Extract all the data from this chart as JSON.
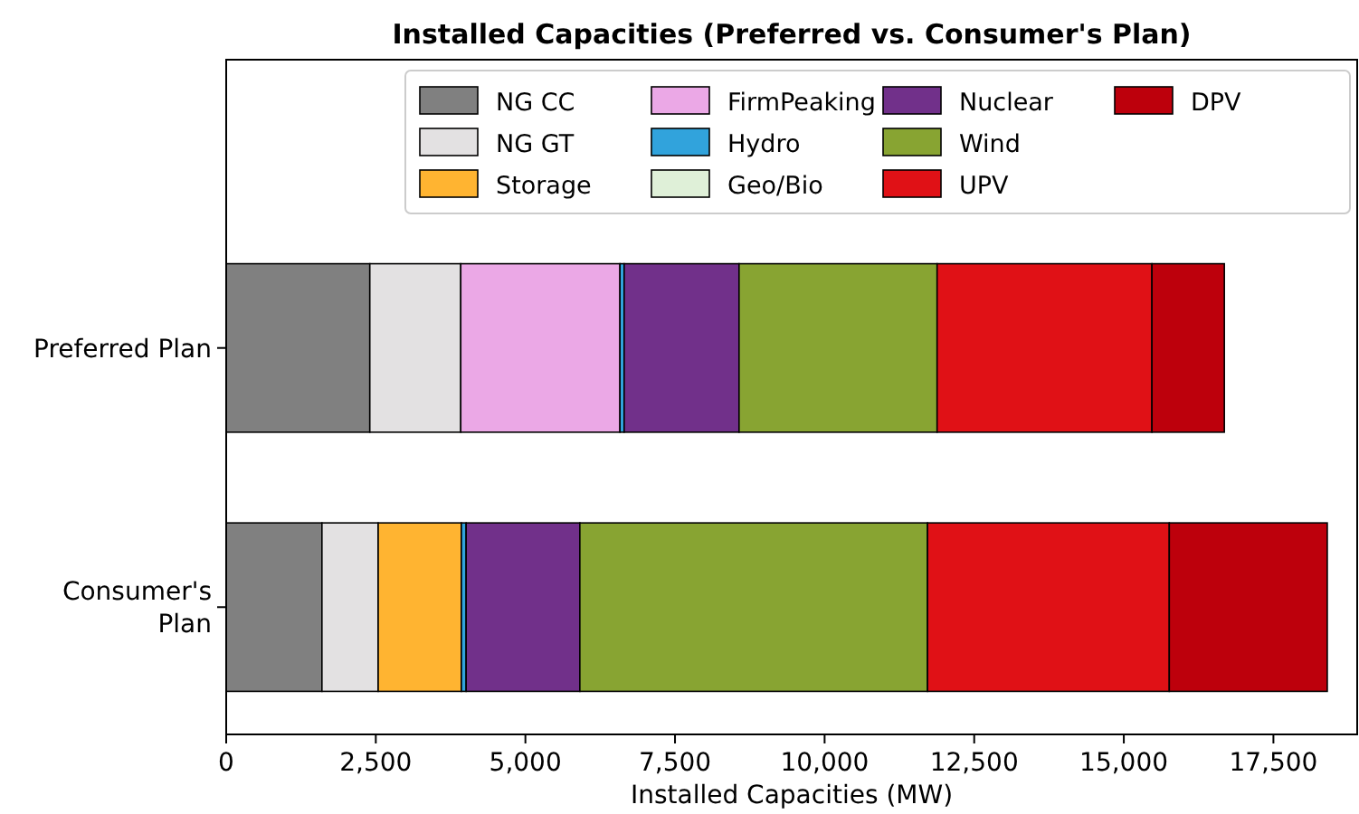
{
  "chart_data": {
    "type": "bar",
    "orientation": "horizontal",
    "stacked": true,
    "title": "Installed Capacities (Preferred vs. Consumer's Plan)",
    "xlabel": "Installed Capacities (MW)",
    "categories": [
      "Preferred Plan",
      "Consumer's Plan"
    ],
    "series": [
      {
        "name": "NG CC",
        "color": "#808080",
        "values": [
          2400,
          1600
        ]
      },
      {
        "name": "NG GT",
        "color": "#e3e1e2",
        "values": [
          1520,
          940
        ]
      },
      {
        "name": "Storage",
        "color": "#ffb431",
        "values": [
          0,
          1390
        ]
      },
      {
        "name": "FirmPeaking",
        "color": "#eba8e6",
        "values": [
          2660,
          0
        ]
      },
      {
        "name": "Hydro",
        "color": "#31a3dc",
        "values": [
          70,
          80
        ]
      },
      {
        "name": "Geo/Bio",
        "color": "#dff0d8",
        "values": [
          0,
          0
        ]
      },
      {
        "name": "Nuclear",
        "color": "#71308a",
        "values": [
          1920,
          1900
        ]
      },
      {
        "name": "Wind",
        "color": "#88a432",
        "values": [
          3310,
          5810
        ]
      },
      {
        "name": "UPV",
        "color": "#e01116",
        "values": [
          3590,
          4040
        ]
      },
      {
        "name": "DPV",
        "color": "#bd000c",
        "values": [
          1210,
          2640
        ]
      }
    ],
    "xlim": [
      0,
      18900
    ],
    "xticks": [
      0,
      {
        "value": 2500,
        "label": "2,500"
      },
      {
        "value": 5000,
        "label": "5,000"
      },
      {
        "value": 7500,
        "label": "7,500"
      },
      {
        "value": 10000,
        "label": "10,000"
      },
      {
        "value": 12500,
        "label": "12,500"
      },
      {
        "value": 15000,
        "label": "15,000"
      },
      {
        "value": 17500,
        "label": "17,500"
      }
    ],
    "legend": "top right",
    "grid": false
  }
}
